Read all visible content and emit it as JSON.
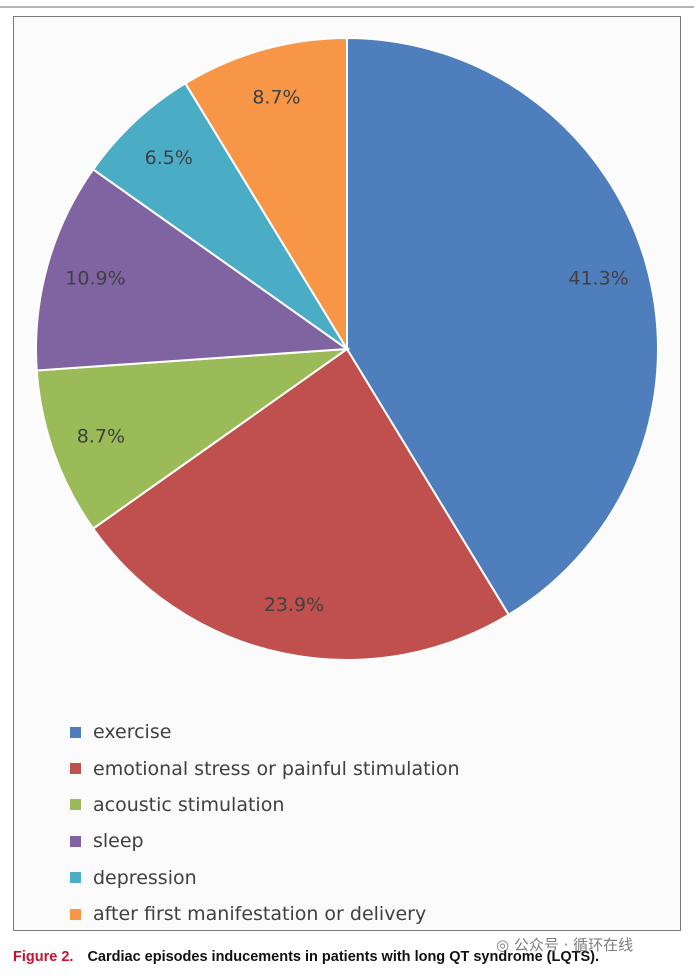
{
  "chart_data": {
    "type": "pie",
    "title": "",
    "categories": [
      "exercise",
      "emotional stress or painful stimulation",
      "acoustic stimulation",
      "sleep",
      "depression",
      "after first manifestation or delivery"
    ],
    "values": [
      41.3,
      23.9,
      8.7,
      10.9,
      6.5,
      8.7
    ],
    "data_labels": [
      "41.3%",
      "23.9%",
      "8.7%",
      "10.9%",
      "6.5%",
      "8.7%"
    ],
    "colors": [
      "#4e7fbc",
      "#c0504d",
      "#9bbb59",
      "#8064a2",
      "#4bacc6",
      "#f79646"
    ],
    "start_angle_deg": 0,
    "direction": "clockwise",
    "legend_position": "bottom-left"
  },
  "caption": {
    "label": "Figure 2.",
    "text": "Cardiac episodes inducements in patients with long QT syndrome (LQTS)."
  },
  "watermark": {
    "text": "公众号 · 循环在线",
    "icon": "wechat-icon"
  }
}
